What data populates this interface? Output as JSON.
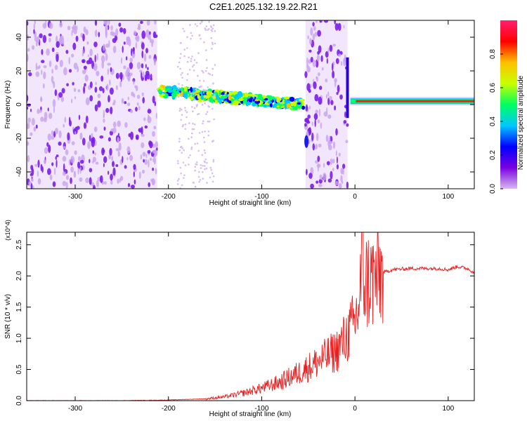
{
  "title": "C2E1.2025.132.19.22.R21",
  "chart_data": [
    {
      "type": "heatmap",
      "xlabel": "Height of straight line (km)",
      "ylabel": "Frequency (Hz)",
      "xlim": [
        -352,
        128
      ],
      "ylim": [
        -50,
        50
      ],
      "xticks": [
        -300,
        -200,
        -100,
        0,
        100
      ],
      "yticks": [
        -40,
        -20,
        0,
        20,
        40
      ],
      "colorbar": {
        "label": "Normalized spectral amplitude",
        "range": [
          0.0,
          1.0
        ],
        "ticks": [
          0.0,
          0.2,
          0.4,
          0.6,
          0.8
        ],
        "colormap": [
          "#d8b8f0",
          "#7a00e0",
          "#0000ff",
          "#00c8ff",
          "#00ff60",
          "#c8ff00",
          "#ffc000",
          "#ff0000",
          "#ff2070"
        ]
      },
      "features": [
        {
          "x_range": [
            -352,
            -212
          ],
          "f_range": [
            -50,
            50
          ],
          "amplitude": 0.2
        },
        {
          "x_range": [
            -210,
            -55
          ],
          "f_center_start": 8,
          "f_center_end": 0,
          "amplitude": 0.45
        },
        {
          "x_range": [
            -53,
            -8
          ],
          "f_range": [
            -50,
            50
          ],
          "amplitude": 0.2
        },
        {
          "x_range": [
            -5,
            128
          ],
          "f_center": 2,
          "amplitude": 0.95
        }
      ]
    },
    {
      "type": "line",
      "xlabel": "Height of straight line (km)",
      "ylabel": "SNR (10 * v/v)",
      "y_multiplier": "(x10^4)",
      "xlim": [
        -352,
        128
      ],
      "ylim": [
        0,
        2.7
      ],
      "xticks": [
        -300,
        -200,
        -100,
        0,
        100
      ],
      "yticks": [
        0.0,
        0.5,
        1.0,
        1.5,
        2.0,
        2.5
      ],
      "series": [
        {
          "color": "#e82020",
          "x": [
            -352,
            -300,
            -250,
            -200,
            -160,
            -140,
            -120,
            -100,
            -80,
            -60,
            -40,
            -20,
            -10,
            0,
            5,
            8,
            10,
            20,
            30,
            40,
            60,
            80,
            90,
            100,
            110,
            120,
            128
          ],
          "y": [
            0.0,
            0.0,
            0.0,
            0.01,
            0.03,
            0.06,
            0.12,
            0.2,
            0.3,
            0.45,
            0.62,
            0.8,
            1.0,
            1.25,
            1.6,
            2.4,
            1.9,
            1.95,
            2.05,
            2.1,
            2.12,
            2.12,
            2.12,
            2.1,
            2.15,
            2.12,
            2.06
          ]
        }
      ]
    }
  ]
}
